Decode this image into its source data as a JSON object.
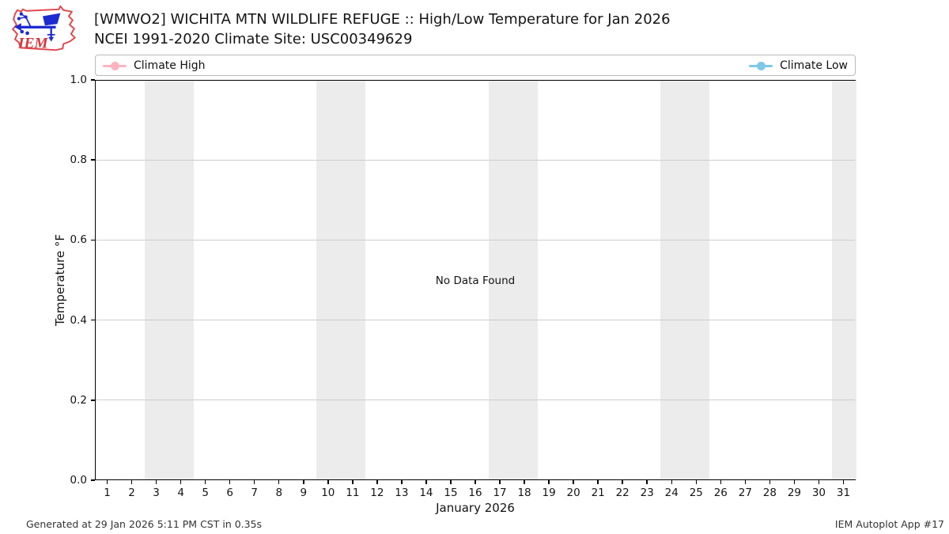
{
  "header": {
    "title_line1": "[WMWO2] WICHITA MTN WILDLIFE REFUGE :: High/Low Temperature for Jan 2026",
    "title_line2": "NCEI 1991-2020 Climate Site: USC00349629",
    "logo_text": "IEM"
  },
  "legend": {
    "items": [
      {
        "label": "Climate High",
        "color": "#ffb3c0"
      },
      {
        "label": "Climate Low",
        "color": "#7ec8e8"
      }
    ]
  },
  "chart_data": {
    "type": "line",
    "title": "[WMWO2] WICHITA MTN WILDLIFE REFUGE :: High/Low Temperature for Jan 2026",
    "subtitle": "NCEI 1991-2020 Climate Site: USC00349629",
    "xlabel": "January 2026",
    "ylabel": "Temperature °F",
    "xlim": [
      0.5,
      31.5
    ],
    "ylim": [
      0.0,
      1.0
    ],
    "x_ticks": [
      1,
      2,
      3,
      4,
      5,
      6,
      7,
      8,
      9,
      10,
      11,
      12,
      13,
      14,
      15,
      16,
      17,
      18,
      19,
      20,
      21,
      22,
      23,
      24,
      25,
      26,
      27,
      28,
      29,
      30,
      31
    ],
    "y_ticks": [
      0.0,
      0.2,
      0.4,
      0.6,
      0.8,
      1.0
    ],
    "y_tick_labels": [
      "0.0",
      "0.2",
      "0.4",
      "0.6",
      "0.8",
      "1.0"
    ],
    "grid": true,
    "grid_values": [
      0.2,
      0.4,
      0.6,
      0.8
    ],
    "grid_color": "#cdcdcd",
    "weekend_bands": [
      [
        2.5,
        4.5
      ],
      [
        9.5,
        11.5
      ],
      [
        16.5,
        18.5
      ],
      [
        23.5,
        25.5
      ],
      [
        30.5,
        31.5
      ]
    ],
    "band_color": "#ececec",
    "series": [
      {
        "name": "Climate High",
        "color": "#ffb3c0",
        "x": [],
        "values": []
      },
      {
        "name": "Climate Low",
        "color": "#7ec8e8",
        "x": [],
        "values": []
      }
    ],
    "no_data_text": "No Data Found",
    "legend_position": "top"
  },
  "footer": {
    "generated": "Generated at 29 Jan 2026 5:11 PM CST in 0.35s",
    "app": "IEM Autoplot App #17"
  }
}
